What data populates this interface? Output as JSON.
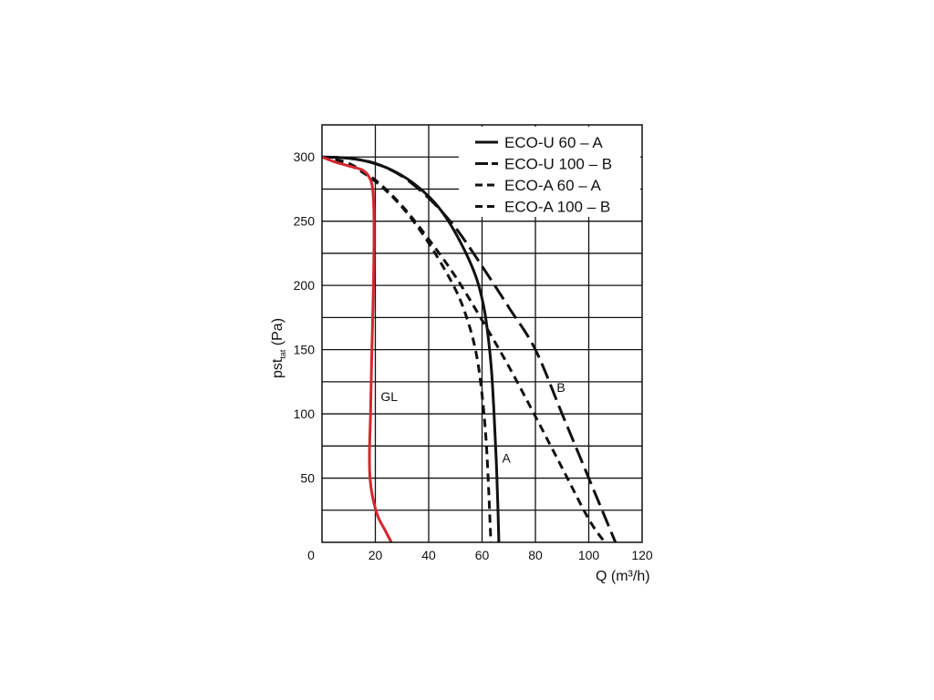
{
  "chart_data": {
    "type": "line",
    "title": "",
    "xlabel": "Q (m³/h)",
    "ylabel_main": "pst",
    "ylabel_sub": "tat",
    "ylabel_unit": " (Pa)",
    "xlim": [
      0,
      120
    ],
    "ylim": [
      0,
      300
    ],
    "xticks": [
      "0",
      "20",
      "40",
      "60",
      "80",
      "100",
      "120"
    ],
    "yticks": [
      "50",
      "100",
      "150",
      "200",
      "250",
      "300"
    ],
    "x_grid_step": 20,
    "y_grid_step": 25,
    "grid": true,
    "legend_position": "top-right",
    "series": [
      {
        "name": "ECO-U 60 – A",
        "style": "solid",
        "color": "#111111",
        "x": [
          0,
          10,
          18,
          26,
          34,
          42,
          48,
          54,
          58,
          60.5,
          62,
          63.5,
          64.5,
          65.3,
          65.9,
          66.3
        ],
        "y": [
          300,
          299,
          296,
          290,
          280,
          265,
          248,
          225,
          205,
          185,
          165,
          135,
          100,
          65,
          30,
          0
        ]
      },
      {
        "name": "ECO-U 100 – B",
        "style": "long-dash",
        "color": "#111111",
        "x": [
          0,
          10,
          20,
          30,
          40,
          50,
          60,
          70,
          80,
          90,
          100,
          110
        ],
        "y": [
          300,
          299,
          295,
          285,
          268,
          245,
          215,
          183,
          150,
          100,
          50,
          0
        ]
      },
      {
        "name": "ECO-A 60 – A",
        "style": "dash",
        "color": "#111111",
        "x": [
          0,
          10,
          20,
          30,
          40,
          50,
          55,
          58,
          60,
          61.5,
          62.5,
          63.3
        ],
        "y": [
          300,
          294,
          281,
          261,
          233,
          197,
          170,
          145,
          115,
          80,
          40,
          0
        ]
      },
      {
        "name": "ECO-A 100 – B",
        "style": "dash",
        "color": "#111111",
        "x": [
          0,
          10,
          20,
          30,
          40,
          50,
          60,
          70,
          80,
          90,
          100,
          106
        ],
        "y": [
          300,
          295,
          282,
          262,
          236,
          207,
          173,
          137,
          98,
          58,
          18,
          0
        ]
      },
      {
        "name": "GL",
        "style": "solid",
        "color": "#d7262f",
        "x": [
          0,
          5,
          10,
          15,
          17.5,
          19,
          19.5,
          19.3,
          18.7,
          18.2,
          17.8,
          18.0,
          19.0,
          21.0,
          23.5,
          26.0
        ],
        "y": [
          300,
          296,
          293,
          290,
          285,
          275,
          250,
          200,
          150,
          100,
          70,
          50,
          35,
          20,
          10,
          0
        ]
      }
    ],
    "annotations": [
      {
        "text": "A",
        "x": 67.5,
        "y": 62
      },
      {
        "text": "B",
        "x": 88,
        "y": 117
      },
      {
        "text": "GL",
        "x": 22,
        "y": 110
      }
    ]
  }
}
